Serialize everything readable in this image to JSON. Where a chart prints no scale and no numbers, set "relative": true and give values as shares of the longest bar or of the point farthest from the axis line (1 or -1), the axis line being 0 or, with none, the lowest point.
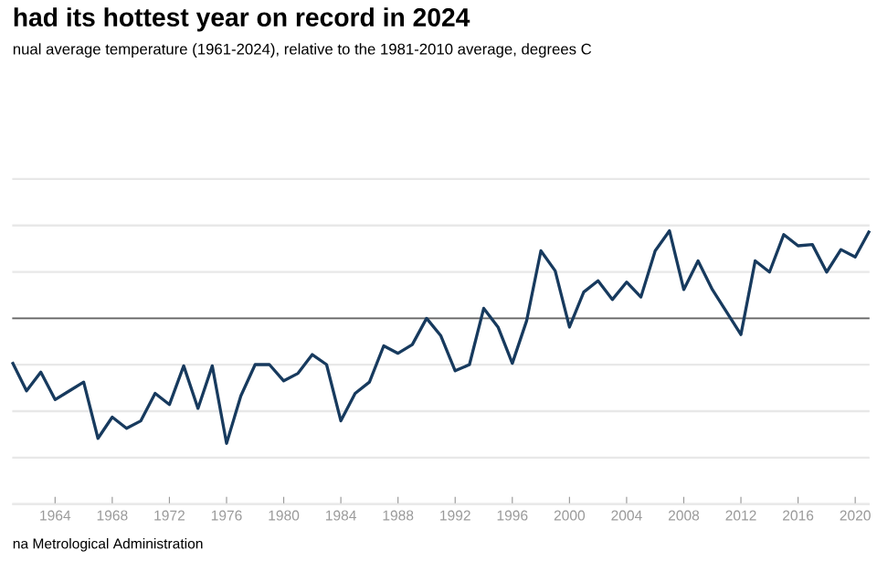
{
  "chart_data": {
    "type": "line",
    "title": "had its hottest year on record in 2024",
    "subtitle": "nual average temperature (1961-2024), relative to the 1981-2010 average, degrees C",
    "annotations": [
      "na Metrological Administration"
    ],
    "relative": true,
    "grid": "y",
    "x": [
      1961,
      1962,
      1963,
      1964,
      1965,
      1966,
      1967,
      1968,
      1969,
      1970,
      1971,
      1972,
      1973,
      1974,
      1975,
      1976,
      1977,
      1978,
      1979,
      1980,
      1981,
      1982,
      1983,
      1984,
      1985,
      1986,
      1987,
      1988,
      1989,
      1990,
      1991,
      1992,
      1993,
      1994,
      1995,
      1996,
      1997,
      1998,
      1999,
      2000,
      2001,
      2002,
      2003,
      2004,
      2005,
      2006,
      2007,
      2008,
      2009,
      2010,
      2011,
      2012,
      2013,
      2014,
      2015,
      2016,
      2017,
      2018,
      2019,
      2020,
      2021
    ],
    "xlim": [
      1961,
      2021
    ],
    "xticks": [
      1964,
      1968,
      1972,
      1976,
      1980,
      1984,
      1988,
      1992,
      1996,
      2000,
      2004,
      2008,
      2012,
      2016,
      2020
    ],
    "series": [
      {
        "color": "#173a5e",
        "values": [
          -0.35,
          -0.58,
          -0.43,
          -0.65,
          -0.58,
          -0.51,
          -0.96,
          -0.79,
          -0.88,
          -0.82,
          -0.6,
          -0.69,
          -0.38,
          -0.72,
          -0.38,
          -1.0,
          -0.62,
          -0.37,
          -0.37,
          -0.5,
          -0.44,
          -0.29,
          -0.37,
          -0.82,
          -0.6,
          -0.51,
          -0.22,
          -0.28,
          -0.21,
          0.0,
          -0.14,
          -0.42,
          -0.37,
          0.08,
          -0.07,
          -0.36,
          -0.02,
          0.54,
          0.38,
          -0.07,
          0.21,
          0.3,
          0.15,
          0.29,
          0.17,
          0.54,
          0.7,
          0.23,
          0.46,
          0.23,
          0.05,
          -0.13,
          0.46,
          0.37,
          0.67,
          0.58,
          0.59,
          0.37,
          0.55,
          0.49,
          0.7
        ]
      }
    ]
  }
}
